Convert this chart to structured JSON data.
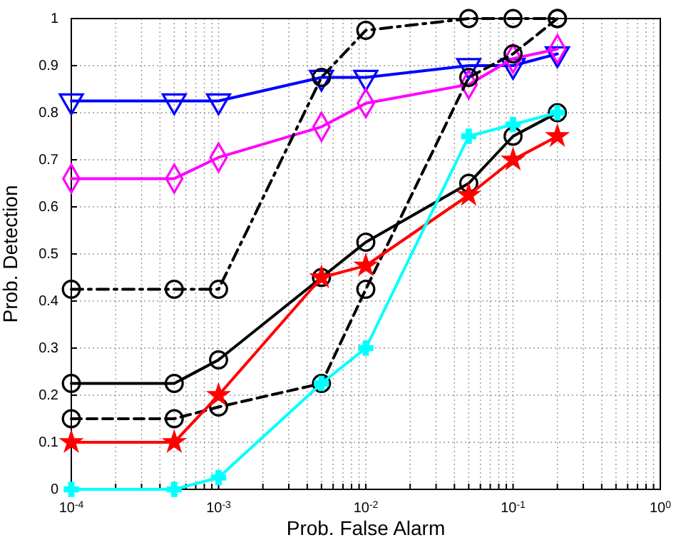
{
  "chart_data": {
    "type": "line",
    "xlabel": "Prob. False Alarm",
    "ylabel": "Prob. Detection",
    "log": "x",
    "grid": true,
    "x": [
      0.0001,
      0.0005,
      0.001,
      0.005,
      0.01,
      0.05,
      0.1,
      0.2
    ],
    "xlim": [
      0.0001,
      1
    ],
    "ylim": [
      0,
      1
    ],
    "xticks": [
      {
        "value": 0.0001,
        "label": "10$^{-4}$"
      },
      {
        "value": 0.0002,
        "label": null
      },
      {
        "value": 0.0003,
        "label": null
      },
      {
        "value": 0.0004,
        "label": null
      },
      {
        "value": 0.0005,
        "label": null
      },
      {
        "value": 0.0006,
        "label": null
      },
      {
        "value": 0.0007,
        "label": null
      },
      {
        "value": 0.0008,
        "label": null
      },
      {
        "value": 0.0009,
        "label": null
      },
      {
        "value": 0.001,
        "label": "10$^{-3}$"
      },
      {
        "value": 0.002,
        "label": null
      },
      {
        "value": 0.003,
        "label": null
      },
      {
        "value": 0.004,
        "label": null
      },
      {
        "value": 0.005,
        "label": null
      },
      {
        "value": 0.006,
        "label": null
      },
      {
        "value": 0.007,
        "label": null
      },
      {
        "value": 0.008,
        "label": null
      },
      {
        "value": 0.009,
        "label": null
      },
      {
        "value": 0.01,
        "label": "10$^{-2}$"
      },
      {
        "value": 0.02,
        "label": null
      },
      {
        "value": 0.03,
        "label": null
      },
      {
        "value": 0.04,
        "label": null
      },
      {
        "value": 0.05,
        "label": null
      },
      {
        "value": 0.06,
        "label": null
      },
      {
        "value": 0.07,
        "label": null
      },
      {
        "value": 0.08,
        "label": null
      },
      {
        "value": 0.09,
        "label": null
      },
      {
        "value": 0.1,
        "label": "10$^{-1}$"
      },
      {
        "value": 0.2,
        "label": null
      },
      {
        "value": 0.3,
        "label": null
      },
      {
        "value": 0.4,
        "label": null
      },
      {
        "value": 0.5,
        "label": null
      },
      {
        "value": 0.6,
        "label": null
      },
      {
        "value": 0.7,
        "label": null
      },
      {
        "value": 0.8,
        "label": null
      },
      {
        "value": 0.9,
        "label": null
      },
      {
        "value": 1,
        "label": "10$^{0}$"
      }
    ],
    "yticks": [
      0,
      0.1,
      0.2,
      0.3,
      0.4,
      0.5,
      0.6,
      0.7,
      0.8,
      0.9,
      1
    ],
    "series": [
      {
        "color": "#0000ff",
        "marker": "triangle",
        "line_style": "solid",
        "values": [
          0.825,
          0.825,
          0.825,
          0.875,
          0.875,
          0.9,
          0.9,
          0.925
        ]
      },
      {
        "color": "#ff00ff",
        "marker": "diamond",
        "line_style": "solid",
        "values": [
          0.66,
          0.66,
          0.705,
          0.77,
          0.82,
          0.86,
          0.915,
          0.935
        ]
      },
      {
        "color": "#000000",
        "marker": "circle",
        "line_style": "dashdot",
        "values": [
          0.425,
          0.425,
          0.425,
          0.875,
          0.975,
          1,
          1,
          1
        ]
      },
      {
        "color": "#000000",
        "marker": "circle",
        "line_style": "dashed",
        "values": [
          0.15,
          0.15,
          0.175,
          0.225,
          0.425,
          0.875,
          0.925,
          1
        ]
      },
      {
        "color": "#000000",
        "marker": "circle",
        "line_style": "solid",
        "values": [
          0.225,
          0.225,
          0.275,
          0.45,
          0.525,
          0.65,
          0.75,
          0.8
        ]
      },
      {
        "color": "#ff0000",
        "marker": "star",
        "line_style": "solid",
        "values": [
          0.1,
          0.1,
          0.2,
          0.45,
          0.475,
          0.625,
          0.7,
          0.75
        ]
      },
      {
        "color": "#00ffff",
        "marker": "cross",
        "line_style": "solid",
        "values": [
          0,
          0,
          0.025,
          0.225,
          0.3,
          0.75,
          0.775,
          0.8
        ]
      }
    ]
  }
}
